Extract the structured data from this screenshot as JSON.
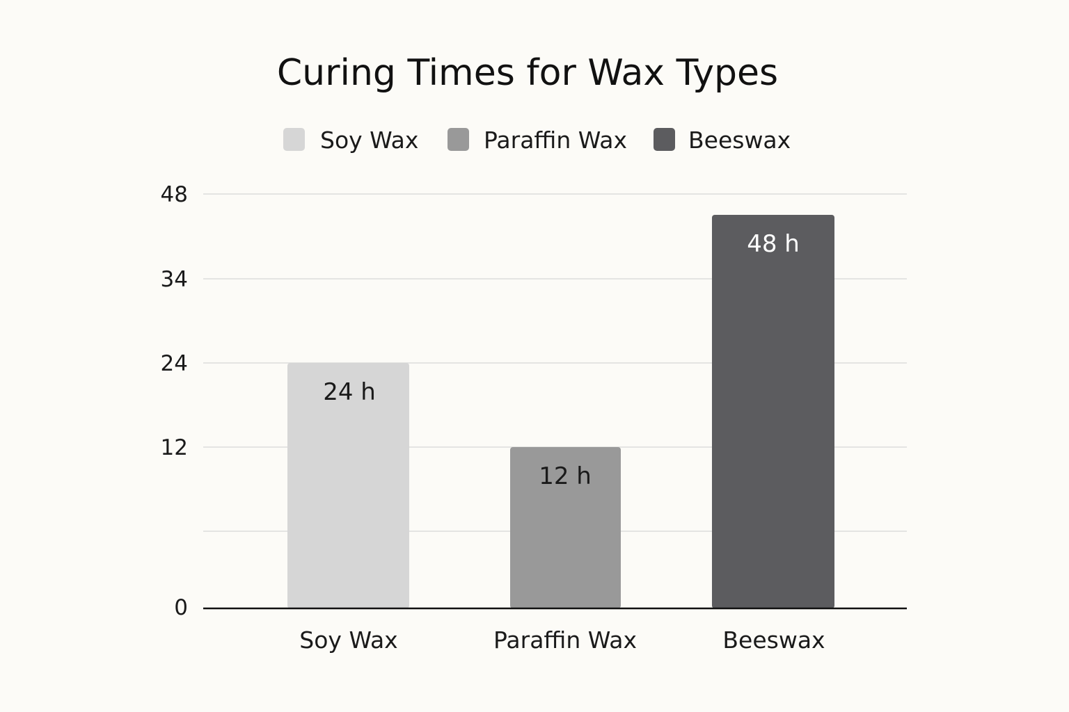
{
  "chart_data": {
    "type": "bar",
    "title": "Curing Times for Wax Types",
    "xlabel": "",
    "ylabel": "",
    "categories": [
      "Soy Wax",
      "Paraffin Wax",
      "Beeswax"
    ],
    "values": [
      24,
      12,
      48
    ],
    "data_labels": [
      "24 h",
      "12 h",
      "48 h"
    ],
    "bar_colors": [
      "#d6d6d6",
      "#999999",
      "#5c5c5f"
    ],
    "label_colors": [
      "#1a1a1a",
      "#1a1a1a",
      "#ffffff"
    ],
    "y_ticks": [
      "48",
      "34",
      "24",
      "12",
      "0"
    ],
    "grid": true,
    "legend": {
      "placement": "top-center",
      "entries": [
        {
          "label": "Soy Wax",
          "color": "#d6d6d6"
        },
        {
          "label": "Paraffin Wax",
          "color": "#999999"
        },
        {
          "label": "Beeswax",
          "color": "#5c5c5f"
        }
      ]
    }
  }
}
